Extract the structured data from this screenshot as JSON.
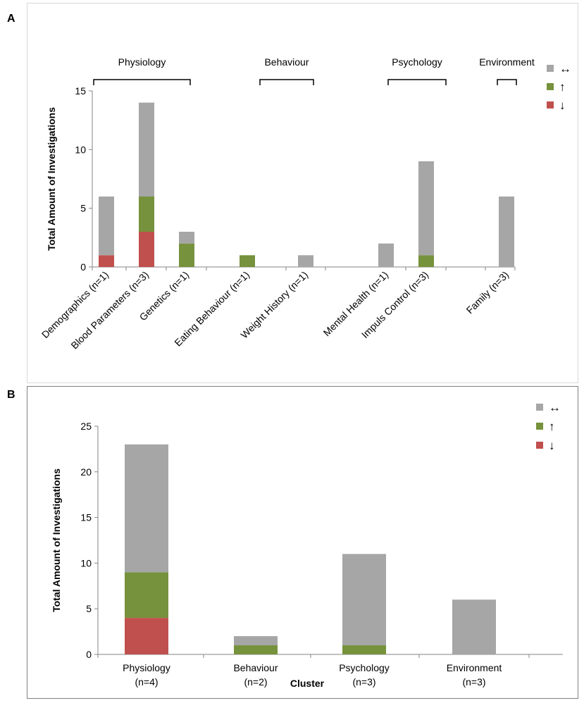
{
  "panel_a_letter": "A",
  "panel_b_letter": "B",
  "legend": [
    {
      "key": "neutral",
      "symbol": "↔",
      "color": "#a6a6a6"
    },
    {
      "key": "increase",
      "symbol": "↑",
      "color": "#76923c"
    },
    {
      "key": "decrease",
      "symbol": "↓",
      "color": "#c0504d"
    }
  ],
  "chart_data": [
    {
      "type": "bar",
      "stacked": true,
      "ylabel": "Total Amount of Investigations",
      "xlabel": "",
      "ylim": [
        0,
        15
      ],
      "yticks": [
        0,
        5,
        10,
        15
      ],
      "categories": [
        "Demographics (n=1)",
        "Blood Parameters (n=3)",
        "Genetics (n=1)",
        "Eating Behaviour (n=1)",
        "Weight History (n=1)",
        "Mental Health (n=1)",
        "Impuls Control (n=3)",
        "Family (n=3)"
      ],
      "series": [
        {
          "name": "↓",
          "values": [
            1,
            3,
            0,
            0,
            0,
            0,
            0,
            0
          ]
        },
        {
          "name": "↑",
          "values": [
            0,
            3,
            2,
            1,
            0,
            0,
            1,
            0
          ]
        },
        {
          "name": "↔",
          "values": [
            5,
            8,
            1,
            0,
            1,
            2,
            8,
            6
          ]
        }
      ],
      "groups": [
        {
          "label": "Physiology",
          "members": [
            0,
            1,
            2
          ]
        },
        {
          "label": "Behaviour",
          "members": [
            3,
            4
          ]
        },
        {
          "label": "Psychology",
          "members": [
            5,
            6
          ]
        },
        {
          "label": "Environment",
          "members": [
            7
          ]
        }
      ]
    },
    {
      "type": "bar",
      "stacked": true,
      "ylabel": "Total Amount of Investigations",
      "xlabel": "Cluster",
      "ylim": [
        0,
        25
      ],
      "yticks": [
        0,
        5,
        10,
        15,
        20,
        25
      ],
      "categories": [
        [
          "Physiology",
          "(n=4)"
        ],
        [
          "Behaviour",
          "(n=2)"
        ],
        [
          "Psychology",
          "(n=3)"
        ],
        [
          "Environment",
          "(n=3)"
        ]
      ],
      "series": [
        {
          "name": "↓",
          "values": [
            4,
            0,
            0,
            0
          ]
        },
        {
          "name": "↑",
          "values": [
            5,
            1,
            1,
            0
          ]
        },
        {
          "name": "↔",
          "values": [
            14,
            1,
            10,
            6
          ]
        }
      ]
    }
  ]
}
